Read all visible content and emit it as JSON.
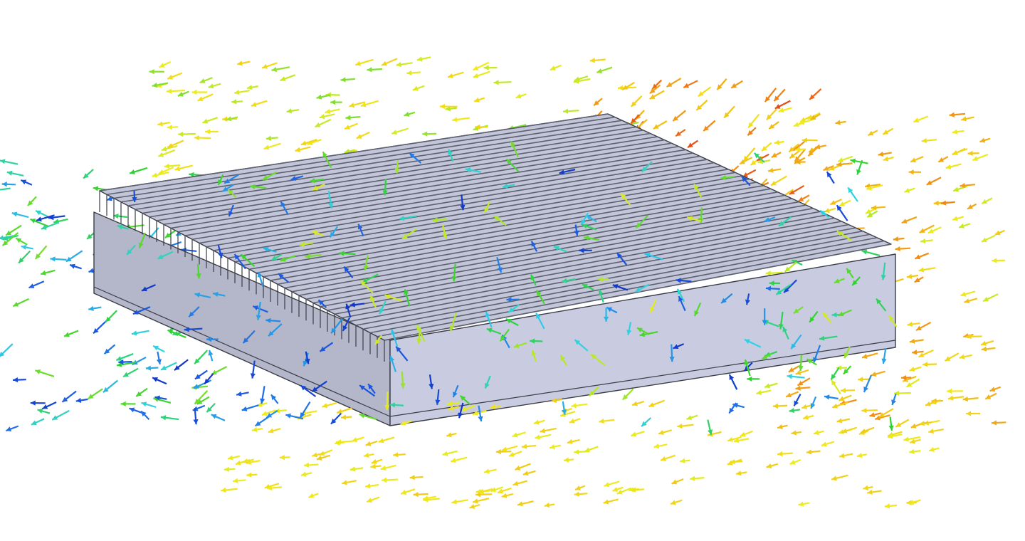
{
  "figure": {
    "subject": "heatsink",
    "field": "flow-velocity-vectors",
    "background_color": "#ffffff"
  },
  "heatsink": {
    "fin_count": 40,
    "colors": {
      "top_face": "#c3c6d8",
      "front_face": "#c9cce0",
      "side_face": "#b4b7ca",
      "fin_face": "#aeb1c2",
      "edge": "#3a3c46",
      "slot": "#5d6070"
    }
  },
  "velocity_colormap": [
    "#0a1ab4",
    "#1e63e6",
    "#2fd2e6",
    "#2fd22f",
    "#a8e62a",
    "#f0ec1c",
    "#f2be14",
    "#f07a14",
    "#d8201a"
  ],
  "vector_regions": [
    {
      "name": "left-inflow",
      "level_range": [
        0.05,
        0.45
      ],
      "direction": "left"
    },
    {
      "name": "top-inflow",
      "level_range": [
        0.45,
        0.7
      ],
      "direction": "left"
    },
    {
      "name": "top-right-hot",
      "level_range": [
        0.65,
        0.95
      ],
      "direction": "down-left"
    },
    {
      "name": "right-side",
      "level_range": [
        0.55,
        0.85
      ],
      "direction": "left"
    },
    {
      "name": "front-bottom",
      "level_range": [
        0.6,
        0.72
      ],
      "direction": "left"
    },
    {
      "name": "front-face-vortex",
      "level_range": [
        0.05,
        0.6
      ],
      "direction": "mixed"
    }
  ]
}
